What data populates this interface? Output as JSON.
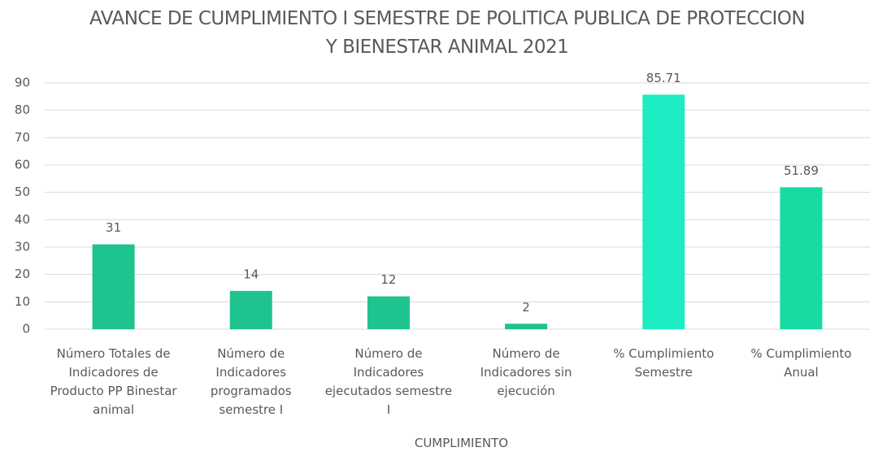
{
  "chart_data": {
    "type": "bar",
    "title": "AVANCE DE CUMPLIMIENTO I SEMESTRE DE POLITICA PUBLICA DE PROTECCION Y BIENESTAR ANIMAL 2021",
    "x_label": "CUMPLIMIENTO",
    "categories": [
      "Número Totales de Indicadores de Producto  PP Binestar animal",
      "Número de Indicadores programados semestre I",
      "Número de Indicadores ejecutados semestre I",
      "Número de Indicadores sin ejecución",
      "% Cumplimiento Semestre",
      "% Cumplimiento Anual"
    ],
    "values": [
      31,
      14,
      12,
      2,
      85.71,
      51.89
    ],
    "colors": [
      "#1ec38f",
      "#1ec38f",
      "#1ec38f",
      "#1ec38f",
      "#1eedc4",
      "#16dca4"
    ],
    "ylim": [
      0,
      90
    ],
    "yticks": [
      0,
      10,
      20,
      30,
      40,
      50,
      60,
      70,
      80,
      90
    ],
    "grid": true
  }
}
